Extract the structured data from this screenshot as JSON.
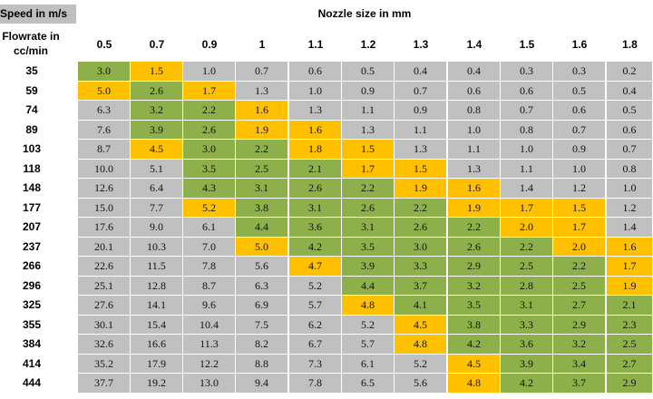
{
  "corner_label": "Speed in m/s",
  "nozzle_title": "Nozzle size in mm",
  "flowrate_title_line1": "Flowrate in",
  "flowrate_title_line2": "cc/min",
  "colors": {
    "grey": "#c0c0c0",
    "green": "#8db04a",
    "orange": "#ffc000"
  },
  "chart_data": {
    "type": "table",
    "columns": [
      "0.5",
      "0.7",
      "0.9",
      "1",
      "1.1",
      "1.2",
      "1.3",
      "1.4",
      "1.5",
      "1.6",
      "1.8"
    ],
    "rows": [
      {
        "flow": "35",
        "values": [
          "3.0",
          "1.5",
          "1.0",
          "0.7",
          "0.6",
          "0.5",
          "0.4",
          "0.4",
          "0.3",
          "0.3",
          "0.2"
        ],
        "colors": [
          "G",
          "O",
          "x",
          "x",
          "x",
          "x",
          "x",
          "x",
          "x",
          "x",
          "x"
        ]
      },
      {
        "flow": "59",
        "values": [
          "5.0",
          "2.6",
          "1.7",
          "1.3",
          "1.0",
          "0.9",
          "0.7",
          "0.6",
          "0.6",
          "0.5",
          "0.4"
        ],
        "colors": [
          "O",
          "G",
          "O",
          "x",
          "x",
          "x",
          "x",
          "x",
          "x",
          "x",
          "x"
        ]
      },
      {
        "flow": "74",
        "values": [
          "6.3",
          "3.2",
          "2.2",
          "1.6",
          "1.3",
          "1.1",
          "0.9",
          "0.8",
          "0.7",
          "0.6",
          "0.5"
        ],
        "colors": [
          "x",
          "G",
          "G",
          "O",
          "x",
          "x",
          "x",
          "x",
          "x",
          "x",
          "x"
        ]
      },
      {
        "flow": "89",
        "values": [
          "7.6",
          "3.9",
          "2.6",
          "1.9",
          "1.6",
          "1.3",
          "1.1",
          "1.0",
          "0.8",
          "0.7",
          "0.6"
        ],
        "colors": [
          "x",
          "G",
          "G",
          "O",
          "O",
          "x",
          "x",
          "x",
          "x",
          "x",
          "x"
        ]
      },
      {
        "flow": "103",
        "values": [
          "8.7",
          "4.5",
          "3.0",
          "2.2",
          "1.8",
          "1.5",
          "1.3",
          "1.1",
          "1.0",
          "0.9",
          "0.7"
        ],
        "colors": [
          "x",
          "O",
          "G",
          "G",
          "O",
          "O",
          "x",
          "x",
          "x",
          "x",
          "x"
        ]
      },
      {
        "flow": "118",
        "values": [
          "10.0",
          "5.1",
          "3.5",
          "2.5",
          "2.1",
          "1.7",
          "1.5",
          "1.3",
          "1.1",
          "1.0",
          "0.8"
        ],
        "colors": [
          "x",
          "x",
          "G",
          "G",
          "G",
          "O",
          "O",
          "x",
          "x",
          "x",
          "x"
        ]
      },
      {
        "flow": "148",
        "values": [
          "12.6",
          "6.4",
          "4.3",
          "3.1",
          "2.6",
          "2.2",
          "1.9",
          "1.6",
          "1.4",
          "1.2",
          "1.0"
        ],
        "colors": [
          "x",
          "x",
          "G",
          "G",
          "G",
          "G",
          "O",
          "O",
          "x",
          "x",
          "x"
        ]
      },
      {
        "flow": "177",
        "values": [
          "15.0",
          "7.7",
          "5.2",
          "3.8",
          "3.1",
          "2.6",
          "2.2",
          "1.9",
          "1.7",
          "1.5",
          "1.2"
        ],
        "colors": [
          "x",
          "x",
          "O",
          "G",
          "G",
          "G",
          "G",
          "O",
          "O",
          "O",
          "x"
        ]
      },
      {
        "flow": "207",
        "values": [
          "17.6",
          "9.0",
          "6.1",
          "4.4",
          "3.6",
          "3.1",
          "2.6",
          "2.2",
          "2.0",
          "1.7",
          "1.4"
        ],
        "colors": [
          "x",
          "x",
          "x",
          "G",
          "G",
          "G",
          "G",
          "G",
          "O",
          "O",
          "x"
        ]
      },
      {
        "flow": "237",
        "values": [
          "20.1",
          "10.3",
          "7.0",
          "5.0",
          "4.2",
          "3.5",
          "3.0",
          "2.6",
          "2.2",
          "2.0",
          "1.6"
        ],
        "colors": [
          "x",
          "x",
          "x",
          "O",
          "G",
          "G",
          "G",
          "G",
          "G",
          "O",
          "O"
        ]
      },
      {
        "flow": "266",
        "values": [
          "22.6",
          "11.5",
          "7.8",
          "5.6",
          "4.7",
          "3.9",
          "3.3",
          "2.9",
          "2.5",
          "2.2",
          "1.7"
        ],
        "colors": [
          "x",
          "x",
          "x",
          "x",
          "O",
          "G",
          "G",
          "G",
          "G",
          "G",
          "O"
        ]
      },
      {
        "flow": "296",
        "values": [
          "25.1",
          "12.8",
          "8.7",
          "6.3",
          "5.2",
          "4.4",
          "3.7",
          "3.2",
          "2.8",
          "2.5",
          "1.9"
        ],
        "colors": [
          "x",
          "x",
          "x",
          "x",
          "x",
          "G",
          "G",
          "G",
          "G",
          "G",
          "O"
        ]
      },
      {
        "flow": "325",
        "values": [
          "27.6",
          "14.1",
          "9.6",
          "6.9",
          "5.7",
          "4.8",
          "4.1",
          "3.5",
          "3.1",
          "2.7",
          "2.1"
        ],
        "colors": [
          "x",
          "x",
          "x",
          "x",
          "x",
          "O",
          "G",
          "G",
          "G",
          "G",
          "G"
        ]
      },
      {
        "flow": "355",
        "values": [
          "30.1",
          "15.4",
          "10.4",
          "7.5",
          "6.2",
          "5.2",
          "4.5",
          "3.8",
          "3.3",
          "2.9",
          "2.3"
        ],
        "colors": [
          "x",
          "x",
          "x",
          "x",
          "x",
          "x",
          "O",
          "G",
          "G",
          "G",
          "G"
        ]
      },
      {
        "flow": "384",
        "values": [
          "32.6",
          "16.6",
          "11.3",
          "8.2",
          "6.7",
          "5.7",
          "4.8",
          "4.2",
          "3.6",
          "3.2",
          "2.5"
        ],
        "colors": [
          "x",
          "x",
          "x",
          "x",
          "x",
          "x",
          "O",
          "G",
          "G",
          "G",
          "G"
        ]
      },
      {
        "flow": "414",
        "values": [
          "35.2",
          "17.9",
          "12.2",
          "8.8",
          "7.3",
          "6.1",
          "5.2",
          "4.5",
          "3.9",
          "3.4",
          "2.7"
        ],
        "colors": [
          "x",
          "x",
          "x",
          "x",
          "x",
          "x",
          "x",
          "O",
          "G",
          "G",
          "G"
        ]
      },
      {
        "flow": "444",
        "values": [
          "37.7",
          "19.2",
          "13.0",
          "9.4",
          "7.8",
          "6.5",
          "5.6",
          "4.8",
          "4.2",
          "3.7",
          "2.9"
        ],
        "colors": [
          "x",
          "x",
          "x",
          "x",
          "x",
          "x",
          "x",
          "O",
          "G",
          "G",
          "G"
        ]
      }
    ]
  }
}
